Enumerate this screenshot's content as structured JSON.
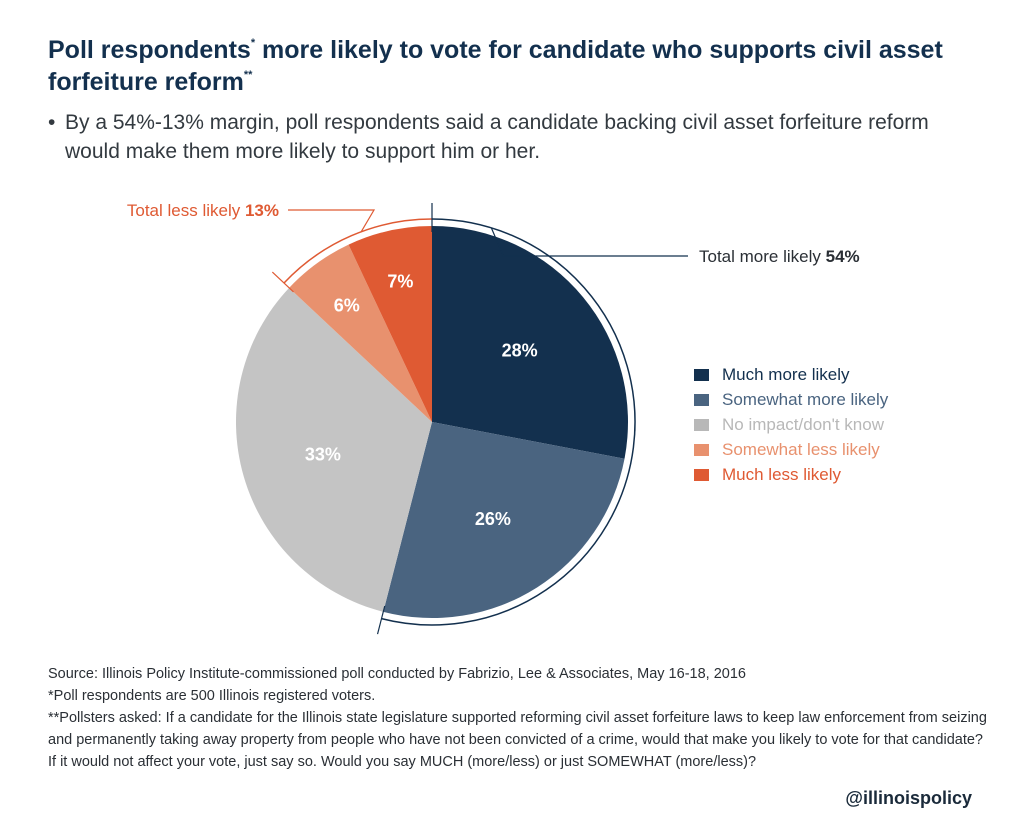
{
  "header": {
    "title_part1": "Poll respondents",
    "title_mark1": "*",
    "title_part2": " more likely to vote for candidate who supports civil asset forfeiture reform",
    "title_mark2": "**",
    "bullet_dot": "•",
    "bullet": "By a 54%-13% margin, poll respondents said a candidate backing civil asset forfeiture reform would make them more likely to support him or her."
  },
  "chart_data": {
    "type": "pie",
    "title": "",
    "slices": [
      {
        "name": "Much more likely",
        "value": 28,
        "label": "28%",
        "color": "#13304e"
      },
      {
        "name": "Somewhat more likely",
        "value": 26,
        "label": "26%",
        "color": "#4a6480"
      },
      {
        "name": "No impact/don't know",
        "value": 33,
        "label": "33%",
        "color": "#c4c4c4"
      },
      {
        "name": "Somewhat less likely",
        "value": 6,
        "label": "6%",
        "color": "#e8916e"
      },
      {
        "name": "Much less likely",
        "value": 7,
        "label": "7%",
        "color": "#df5a33"
      }
    ],
    "brackets": [
      {
        "label": "Total more likely ",
        "value_label": "54%",
        "color": "#13304e",
        "label_color": "#2a2f35"
      },
      {
        "label": "Total less likely ",
        "value_label": "13%",
        "color": "#df5a33",
        "label_color": "#df5a33"
      }
    ],
    "legend_position": "right"
  },
  "legend_colors": {
    "Much more likely": "#13304e",
    "Somewhat more likely": "#4a6480",
    "No impact/don't know": "#b8b8b8",
    "Somewhat less likely": "#e8916e",
    "Much less likely": "#df5a33"
  },
  "footer": {
    "source": "Source: Illinois Policy Institute-commissioned poll conducted by Fabrizio, Lee & Associates, May 16-18, 2016",
    "note1": "*Poll respondents are 500 Illinois registered voters.",
    "note2": "**Pollsters asked: If a candidate for the Illinois state legislature supported reforming civil asset forfeiture laws to keep law enforcement from seizing and permanently taking away property from people who have not been convicted of a crime, would that make you likely to vote for that candidate? If it would not affect your vote, just say so. Would you say MUCH (more/less) or just SOMEWHAT (more/less)?"
  },
  "handle": "@illinoispolicy"
}
